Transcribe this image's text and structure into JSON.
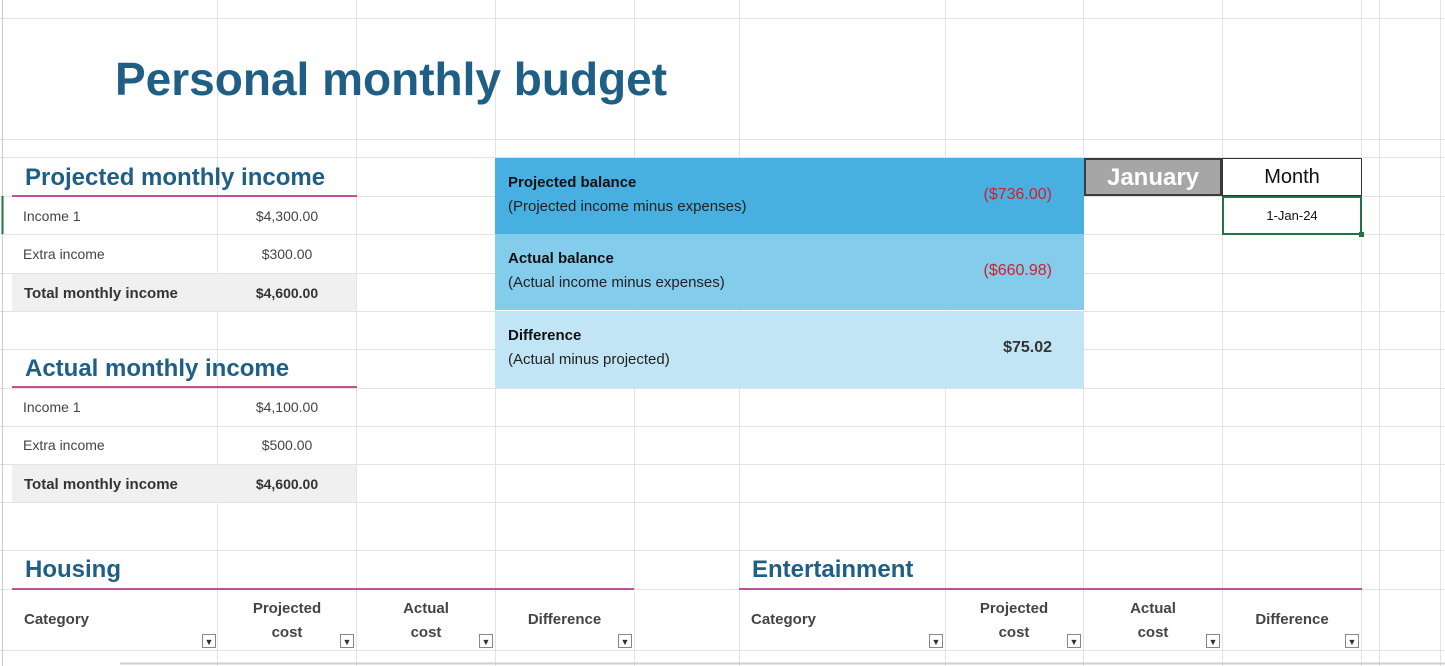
{
  "title": "Personal monthly budget",
  "projected_income": {
    "heading": "Projected monthly income",
    "rows": [
      {
        "label": "Income 1",
        "value": "$4,300.00"
      },
      {
        "label": "Extra income",
        "value": "$300.00"
      }
    ],
    "total": {
      "label": "Total monthly income",
      "value": "$4,600.00"
    }
  },
  "actual_income": {
    "heading": "Actual monthly income",
    "rows": [
      {
        "label": "Income 1",
        "value": "$4,100.00"
      },
      {
        "label": "Extra income",
        "value": "$500.00"
      }
    ],
    "total": {
      "label": "Total monthly income",
      "value": "$4,600.00"
    }
  },
  "balances": [
    {
      "title": "Projected balance",
      "subtitle": "(Projected income minus expenses)",
      "value": "($736.00)"
    },
    {
      "title": "Actual balance",
      "subtitle": "(Actual income minus expenses)",
      "value": "($660.98)"
    },
    {
      "title": "Difference",
      "subtitle": "(Actual minus projected)",
      "value": "$75.02"
    }
  ],
  "month_panel": {
    "selected_month": "January",
    "month_header": "Month",
    "date": "1-Jan-24"
  },
  "housing": {
    "heading": "Housing",
    "columns": {
      "category": "Category",
      "projected_1": "Projected",
      "projected_2": "cost",
      "actual_1": "Actual",
      "actual_2": "cost",
      "difference": "Difference"
    }
  },
  "entertainment": {
    "heading": "Entertainment",
    "columns": {
      "category": "Category",
      "projected_1": "Projected",
      "projected_2": "cost",
      "actual_1": "Actual",
      "actual_2": "cost",
      "difference": "Difference"
    }
  },
  "colors": {
    "title": "#1f5f86",
    "accent_underline": "#c0509a",
    "balance_projected_bg": "#47b0e0",
    "balance_actual_bg": "#83ccec",
    "balance_difference_bg": "#c2e5f5",
    "negative_value": "#d0202a",
    "month_selected_bg": "#a6a6a6",
    "active_cell_border": "#217346"
  }
}
